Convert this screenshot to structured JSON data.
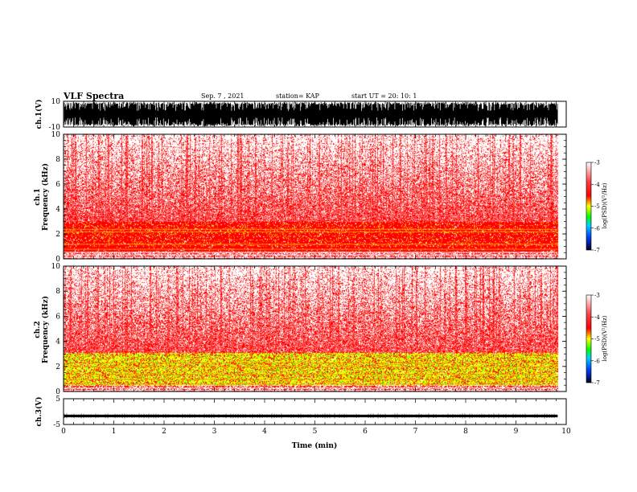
{
  "header": {
    "title": "VLF Spectra",
    "date": "Sep. 7 , 2021",
    "station": "station= KAP",
    "start": "start  UT  =   20: 10: 1"
  },
  "chart_data": [
    {
      "type": "line",
      "name": "ch1-waveform",
      "ylabel": "ch.1(V)",
      "ylim": [
        -10,
        10
      ],
      "yticks": [
        "10",
        "-10"
      ],
      "xlim": [
        0,
        10
      ]
    },
    {
      "type": "heatmap",
      "name": "ch1-spectrogram",
      "ylabel": "ch.1\nFrequency  (kHz)",
      "ylabel_line1": "ch.1",
      "ylabel_line2": "Frequency  (kHz)",
      "ylim": [
        0,
        10
      ],
      "yticks": [
        "0",
        "2",
        "4",
        "6",
        "8",
        "10"
      ],
      "xlim": [
        0,
        10
      ],
      "colorbar": {
        "label": "log(PSD)(V²/Hz)",
        "ticks": [
          "-3",
          "-4",
          "-5",
          "-6",
          "-7"
        ],
        "range": [
          -7,
          -3
        ]
      }
    },
    {
      "type": "heatmap",
      "name": "ch2-spectrogram",
      "ylabel_line1": "ch.2",
      "ylabel_line2": "Frequency  (kHz)",
      "ylim": [
        0,
        10
      ],
      "yticks": [
        "0",
        "2",
        "4",
        "6",
        "8",
        "10"
      ],
      "xlim": [
        0,
        10
      ],
      "colorbar": {
        "label": "log(PSD)(V²/Hz)",
        "ticks": [
          "-3",
          "-4",
          "-5",
          "-6",
          "-7"
        ],
        "range": [
          -7,
          -3
        ]
      }
    },
    {
      "type": "line",
      "name": "ch3-waveform",
      "ylabel": "ch.3(V)",
      "ylim": [
        -5,
        5
      ],
      "yticks": [
        "5",
        "-5"
      ],
      "xlim": [
        0,
        10
      ],
      "xlabel": "Time  (min)",
      "xticks": [
        "0",
        "1",
        "2",
        "3",
        "4",
        "5",
        "6",
        "7",
        "8",
        "9",
        "10"
      ]
    }
  ],
  "colors": {
    "background": "#ffffff",
    "trace": "#000000",
    "spec_high": "#ff0000",
    "spec_mid": "#ffff00",
    "spec_low": "#00ff00"
  }
}
